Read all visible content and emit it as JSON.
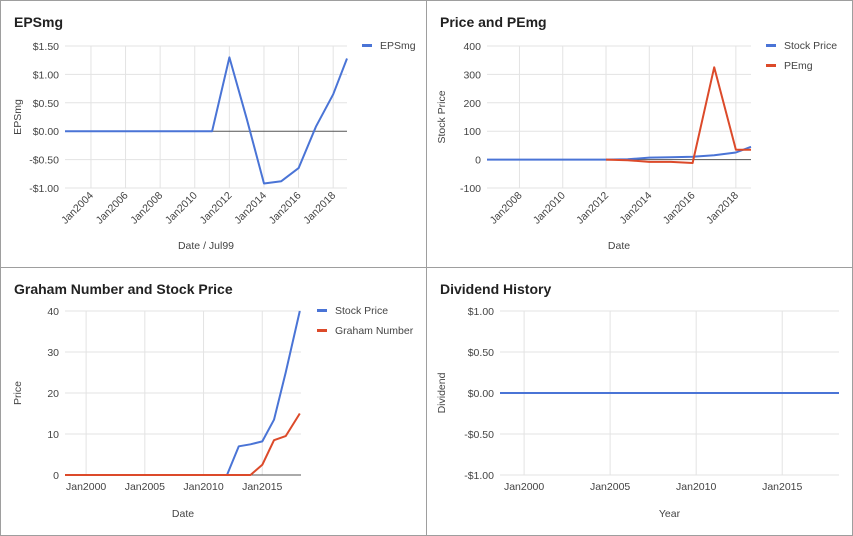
{
  "chart_data": [
    {
      "type": "line",
      "title": "EPSmg",
      "xlabel": "Date / Jul99",
      "ylabel": "EPSmg",
      "xlim": [
        2002.5,
        2018.8
      ],
      "ylim": [
        -1.0,
        1.5
      ],
      "yticks": [
        -1.0,
        -0.5,
        0.0,
        0.5,
        1.0,
        1.5
      ],
      "ytick_labels": [
        "-$1.00",
        "-$0.50",
        "$0.00",
        "$0.50",
        "$1.00",
        "$1.50"
      ],
      "xticks": [
        2004,
        2006,
        2008,
        2010,
        2012,
        2014,
        2016,
        2018
      ],
      "xtick_labels": [
        "Jan2004",
        "Jan2006",
        "Jan2008",
        "Jan2010",
        "Jan2012",
        "Jan2014",
        "Jan2016",
        "Jan2018"
      ],
      "grid": true,
      "legend_position": "top-right",
      "series": [
        {
          "name": "EPSmg",
          "color": "#4a74d6",
          "x": [
            2002.5,
            2004,
            2006,
            2008,
            2010,
            2011,
            2012,
            2013,
            2014,
            2015,
            2016,
            2017,
            2018,
            2018.8
          ],
          "y": [
            0,
            0,
            0,
            0,
            0,
            0,
            1.3,
            0.22,
            -0.92,
            -0.88,
            -0.65,
            0.08,
            0.65,
            1.28
          ]
        }
      ]
    },
    {
      "type": "line",
      "title": "Price and PEmg",
      "xlabel": "Date",
      "ylabel": "Stock Price",
      "xlim": [
        2006.5,
        2018.7
      ],
      "ylim": [
        -100,
        400
      ],
      "yticks": [
        -100,
        0,
        100,
        200,
        300,
        400
      ],
      "ytick_labels": [
        "-100",
        "0",
        "100",
        "200",
        "300",
        "400"
      ],
      "xticks": [
        2008,
        2010,
        2012,
        2014,
        2016,
        2018
      ],
      "xtick_labels": [
        "Jan2008",
        "Jan2010",
        "Jan2012",
        "Jan2014",
        "Jan2016",
        "Jan2018"
      ],
      "grid": true,
      "legend_position": "top-right",
      "series": [
        {
          "name": "Stock Price",
          "color": "#4a74d6",
          "x": [
            2006.5,
            2008,
            2010,
            2012,
            2013,
            2014,
            2015,
            2016,
            2017,
            2018,
            2018.7
          ],
          "y": [
            0,
            0,
            0,
            0,
            1,
            7,
            8,
            10,
            15,
            25,
            45
          ]
        },
        {
          "name": "PEmg",
          "color": "#dc4a2a",
          "x": [
            2012,
            2013,
            2014,
            2015,
            2016,
            2017,
            2018,
            2018.7
          ],
          "y": [
            0,
            -2,
            -8,
            -8,
            -12,
            325,
            35,
            35
          ]
        }
      ]
    },
    {
      "type": "line",
      "title": "Graham Number and Stock Price",
      "xlabel": "Date",
      "ylabel": "Price",
      "xlim": [
        1998.2,
        2018.3
      ],
      "ylim": [
        0,
        40
      ],
      "yticks": [
        0,
        10,
        20,
        30,
        40
      ],
      "ytick_labels": [
        "0",
        "10",
        "20",
        "30",
        "40"
      ],
      "xticks": [
        2000,
        2005,
        2010,
        2015
      ],
      "xtick_labels": [
        "Jan2000",
        "Jan2005",
        "Jan2010",
        "Jan2015"
      ],
      "grid": true,
      "legend_position": "top-right",
      "series": [
        {
          "name": "Stock Price",
          "color": "#4a74d6",
          "x": [
            1998.2,
            2005,
            2010,
            2012,
            2013,
            2014,
            2015,
            2016,
            2017,
            2018.2
          ],
          "y": [
            0,
            0,
            0,
            0,
            7,
            7.5,
            8.2,
            13.5,
            25,
            40
          ]
        },
        {
          "name": "Graham Number",
          "color": "#dc4a2a",
          "x": [
            1998.2,
            2005,
            2010,
            2014,
            2015,
            2016,
            2017,
            2018.2
          ],
          "y": [
            0,
            0,
            0,
            0,
            2.5,
            8.5,
            9.5,
            15
          ]
        }
      ]
    },
    {
      "type": "line",
      "title": "Dividend History",
      "xlabel": "Year",
      "ylabel": "Dividend",
      "xlim": [
        1998.6,
        2018.3
      ],
      "ylim": [
        -1.0,
        1.0
      ],
      "yticks": [
        -1.0,
        -0.5,
        0.0,
        0.5,
        1.0
      ],
      "ytick_labels": [
        "-$1.00",
        "-$0.50",
        "$0.00",
        "$0.50",
        "$1.00"
      ],
      "xticks": [
        2000,
        2005,
        2010,
        2015
      ],
      "xtick_labels": [
        "Jan2000",
        "Jan2005",
        "Jan2010",
        "Jan2015"
      ],
      "grid": true,
      "legend_position": "none",
      "series": [
        {
          "color": "#4a74d6",
          "x": [
            1998.6,
            2018.3
          ],
          "y": [
            0,
            0
          ]
        }
      ]
    }
  ]
}
